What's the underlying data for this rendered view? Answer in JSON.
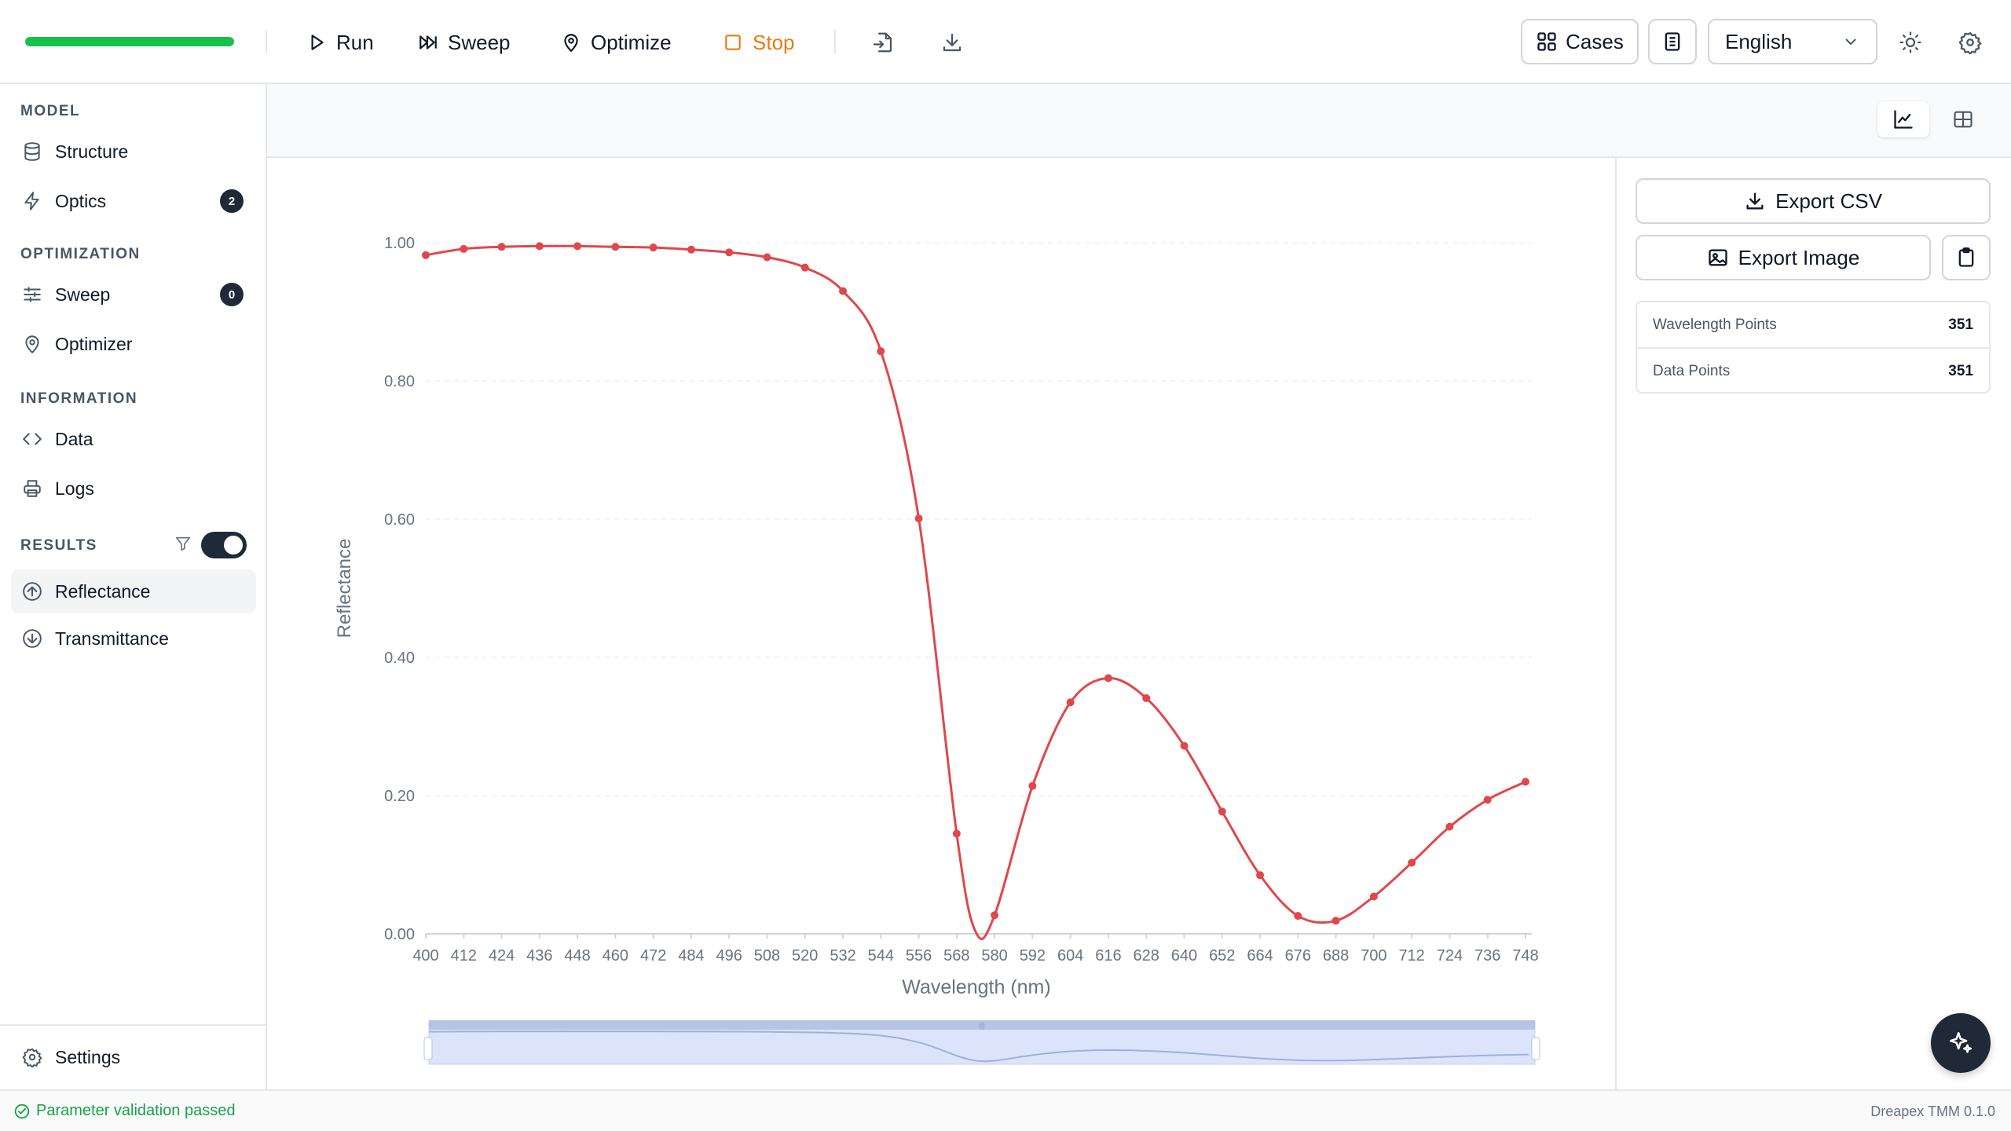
{
  "toolbar": {
    "progress_fraction": 1.0,
    "progress_color": "#16c24a",
    "run_label": "Run",
    "sweep_label": "Sweep",
    "optimize_label": "Optimize",
    "stop_label": "Stop",
    "cases_label": "Cases",
    "language": "English"
  },
  "sidebar": {
    "sections": {
      "model": "MODEL",
      "optimization": "OPTIMIZATION",
      "information": "INFORMATION",
      "results": "RESULTS"
    },
    "items": {
      "structure": "Structure",
      "optics": "Optics",
      "optics_badge": "2",
      "sweep": "Sweep",
      "sweep_badge": "0",
      "optimizer": "Optimizer",
      "data": "Data",
      "logs": "Logs",
      "reflectance": "Reflectance",
      "transmittance": "Transmittance",
      "settings": "Settings"
    },
    "results_toggle_on": true
  },
  "right_panel": {
    "export_csv": "Export CSV",
    "export_image": "Export Image",
    "stats": [
      {
        "label": "Wavelength Points",
        "value": "351"
      },
      {
        "label": "Data Points",
        "value": "351"
      }
    ]
  },
  "status": {
    "message": "Parameter validation passed",
    "version": "Dreapex TMM 0.1.0"
  },
  "chart_data": {
    "type": "line",
    "xlabel": "Wavelength (nm)",
    "ylabel": "Reflectance",
    "ylim": [
      0,
      1
    ],
    "yticks": [
      "0.00",
      "0.20",
      "0.40",
      "0.60",
      "0.80",
      "1.00"
    ],
    "xticks": [
      "400",
      "412",
      "424",
      "436",
      "448",
      "460",
      "472",
      "484",
      "496",
      "508",
      "520",
      "532",
      "544",
      "556",
      "568",
      "580",
      "592",
      "604",
      "616",
      "628",
      "640",
      "652",
      "664",
      "676",
      "688",
      "700",
      "712",
      "724",
      "736",
      "748"
    ],
    "color": "#e0474c",
    "x": [
      400,
      412,
      424,
      436,
      448,
      460,
      472,
      484,
      496,
      508,
      520,
      532,
      544,
      556,
      568,
      574,
      580,
      592,
      604,
      616,
      628,
      640,
      652,
      664,
      676,
      688,
      700,
      712,
      724,
      736,
      748
    ],
    "y": [
      0.982,
      0.991,
      0.994,
      0.995,
      0.995,
      0.994,
      0.993,
      0.99,
      0.986,
      0.979,
      0.964,
      0.93,
      0.843,
      0.601,
      0.145,
      0.003,
      0.027,
      0.214,
      0.335,
      0.37,
      0.341,
      0.272,
      0.177,
      0.085,
      0.026,
      0.019,
      0.054,
      0.103,
      0.155,
      0.194,
      0.22
    ],
    "grid": true,
    "zoom_range": [
      400,
      750
    ]
  }
}
